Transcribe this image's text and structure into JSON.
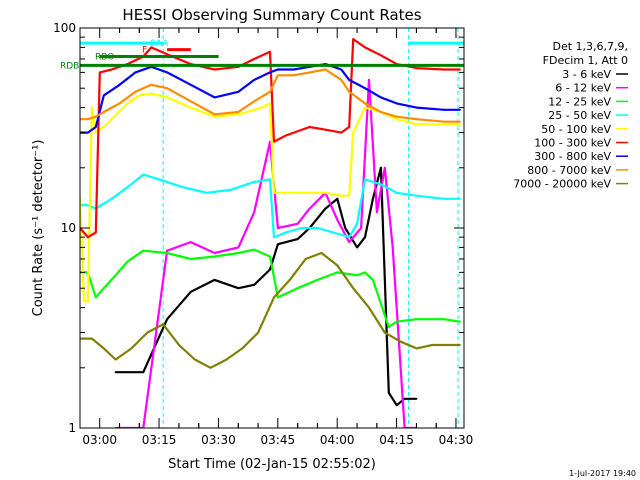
{
  "chart_data": {
    "type": "line",
    "title": "HESSI Observing Summary Count Rates",
    "xlabel": "Start Time (02-Jan-15 02:55:02)",
    "ylabel": "Count Rate (s⁻¹ detector⁻¹)",
    "yscale": "log",
    "ylim": [
      1,
      100
    ],
    "xlim_minutes": [
      0,
      97
    ],
    "yticks": [
      {
        "value": 1,
        "label": "1"
      },
      {
        "value": 10,
        "label": "10"
      },
      {
        "value": 100,
        "label": "100"
      }
    ],
    "xticks": [
      {
        "value": 4.97,
        "label": "03:00"
      },
      {
        "value": 19.97,
        "label": "03:15"
      },
      {
        "value": 34.97,
        "label": "03:30"
      },
      {
        "value": 49.97,
        "label": "03:45"
      },
      {
        "value": 64.97,
        "label": "04:00"
      },
      {
        "value": 79.97,
        "label": "04:15"
      },
      {
        "value": 94.97,
        "label": "04:30"
      }
    ],
    "legend_header": [
      "Det 1,3,6,7,9,",
      "FDecim 1, Att 0"
    ],
    "legend_placement": "right",
    "series": [
      {
        "name": "3 - 6 keV",
        "color": "#000000",
        "x": [
          9,
          16,
          22,
          28,
          34,
          40,
          44,
          48,
          50,
          55,
          58,
          62,
          65,
          67,
          70,
          72,
          74,
          76,
          78,
          80,
          82,
          85
        ],
        "y": [
          1.9,
          1.9,
          3.5,
          4.8,
          5.5,
          5.0,
          5.2,
          6.2,
          8.3,
          8.8,
          10.0,
          12.5,
          14.0,
          10.0,
          8.0,
          9.0,
          14.0,
          20.0,
          1.5,
          1.3,
          1.4,
          1.4
        ]
      },
      {
        "name": "6 - 12 keV",
        "color": "#ff00ff",
        "x": [
          9,
          16,
          22,
          28,
          34,
          40,
          44,
          48,
          50,
          55,
          58,
          62,
          65,
          68,
          71,
          73,
          75,
          77,
          79,
          82,
          85
        ],
        "y": [
          1.0,
          1.0,
          7.7,
          8.5,
          7.5,
          8.0,
          12.0,
          27.0,
          10.0,
          10.5,
          12.5,
          15.0,
          11.0,
          8.5,
          10.0,
          55.0,
          12.0,
          20.0,
          8.0,
          1.0,
          1.0
        ]
      },
      {
        "name": "12 - 25 keV",
        "color": "#00ff00",
        "x": [
          0,
          2,
          4,
          6,
          9,
          12,
          16,
          22,
          28,
          34,
          40,
          44,
          48,
          50,
          55,
          60,
          65,
          70,
          72,
          74,
          78,
          80,
          85,
          92,
          96
        ],
        "y": [
          6.0,
          6.0,
          4.5,
          5.0,
          5.8,
          6.8,
          7.7,
          7.5,
          7.0,
          7.2,
          7.5,
          7.8,
          7.2,
          4.5,
          5.0,
          5.5,
          6.0,
          5.8,
          6.0,
          5.5,
          3.2,
          3.4,
          3.5,
          3.5,
          3.4
        ]
      },
      {
        "name": "25 - 50 keV",
        "color": "#00ffff",
        "x": [
          0,
          2,
          4,
          8,
          12,
          16,
          20,
          26,
          32,
          38,
          44,
          48,
          49,
          52,
          56,
          60,
          64,
          68,
          70,
          72,
          76,
          80,
          85,
          92,
          96
        ],
        "y": [
          13.0,
          13.0,
          12.5,
          14.0,
          16.0,
          18.5,
          17.5,
          16.0,
          15.0,
          15.5,
          17.0,
          17.5,
          9.0,
          9.5,
          10.0,
          10.0,
          9.5,
          9.0,
          10.5,
          17.5,
          16.5,
          15.0,
          14.5,
          14.0,
          14.0
        ]
      },
      {
        "name": "50 - 100 keV",
        "color": "#ffff00",
        "x": [
          0,
          1,
          2,
          3,
          4,
          6,
          8,
          12,
          15,
          18,
          22,
          28,
          34,
          40,
          46,
          48,
          49,
          52,
          58,
          62,
          66,
          68,
          69,
          72,
          76,
          80,
          85,
          96
        ],
        "y": [
          14.0,
          4.3,
          4.3,
          40.0,
          30.0,
          32.0,
          35.0,
          42.0,
          46.0,
          47.0,
          45.0,
          40.0,
          36.0,
          37.0,
          40.0,
          42.0,
          15.0,
          15.0,
          15.0,
          15.0,
          14.5,
          14.5,
          30.0,
          40.0,
          38.0,
          35.0,
          33.0,
          33.0
        ]
      },
      {
        "name": "100 - 300 keV",
        "color": "#ff0000",
        "x": [
          0,
          2,
          4,
          5,
          8,
          12,
          16,
          18,
          22,
          28,
          34,
          40,
          44,
          48,
          49,
          52,
          58,
          62,
          66,
          68,
          69,
          72,
          76,
          80,
          85,
          92,
          96
        ],
        "y": [
          10.0,
          9.0,
          9.5,
          60.0,
          62.0,
          66.0,
          72.0,
          80.0,
          74.0,
          66.0,
          62.0,
          64.0,
          70.0,
          76.0,
          27.0,
          29.0,
          32.0,
          31.0,
          30.0,
          32.0,
          88.0,
          80.0,
          73.0,
          66.0,
          63.0,
          62.0,
          62.0
        ]
      },
      {
        "name": "300 - 800 keV",
        "color": "#0000ff",
        "x": [
          0,
          2,
          4,
          6,
          10,
          14,
          18,
          22,
          28,
          34,
          40,
          44,
          48,
          50,
          54,
          58,
          62,
          66,
          68,
          72,
          76,
          80,
          85,
          92,
          96
        ],
        "y": [
          30.0,
          30.0,
          32.0,
          46.0,
          52.0,
          60.0,
          64.0,
          60.0,
          52.0,
          45.0,
          48.0,
          55.0,
          60.0,
          62.0,
          62.0,
          64.0,
          66.0,
          62.0,
          55.0,
          50.0,
          45.0,
          42.0,
          40.0,
          39.0,
          39.0
        ]
      },
      {
        "name": "800 - 7000 keV",
        "color": "#ff8c00",
        "x": [
          0,
          2,
          4,
          6,
          10,
          14,
          18,
          22,
          28,
          34,
          40,
          44,
          48,
          50,
          54,
          58,
          62,
          66,
          68,
          72,
          76,
          80,
          85,
          92,
          96
        ],
        "y": [
          35.0,
          35.0,
          36.0,
          38.0,
          42.0,
          48.0,
          52.0,
          50.0,
          43.0,
          37.0,
          38.0,
          43.0,
          48.0,
          58.0,
          58.0,
          60.0,
          62.0,
          55.0,
          48.0,
          42.0,
          38.0,
          36.0,
          35.0,
          34.0,
          34.0
        ]
      },
      {
        "name": "7000 - 20000 keV",
        "color": "#808000",
        "x": [
          0,
          3,
          6,
          9,
          13,
          17,
          21,
          25,
          29,
          33,
          37,
          41,
          45,
          49,
          53,
          57,
          61,
          65,
          69,
          73,
          77,
          81,
          85,
          89,
          93,
          96
        ],
        "y": [
          2.8,
          2.8,
          2.5,
          2.2,
          2.5,
          3.0,
          3.3,
          2.6,
          2.2,
          2.0,
          2.2,
          2.5,
          3.0,
          4.5,
          5.5,
          7.0,
          7.5,
          6.5,
          5.0,
          4.0,
          3.0,
          2.7,
          2.5,
          2.6,
          2.6,
          2.6
        ]
      }
    ],
    "status_bars": [
      {
        "label": "RDB",
        "color": "#008000",
        "value": 65,
        "x": [
          0,
          97
        ]
      },
      {
        "label": "RBO",
        "color": "#008000",
        "value": 72,
        "x": [
          5,
          35
        ]
      },
      {
        "label": "F",
        "color": "#ff0000",
        "value": 78,
        "x": [
          22,
          28
        ]
      },
      {
        "label": "SAA",
        "color": "#00ffff",
        "value": 84,
        "x": [
          0,
          21
        ]
      },
      {
        "label": "SAA",
        "color": "#00ffff",
        "value": 84,
        "x": [
          83,
          97
        ]
      }
    ],
    "status_bar_labels": [
      "RDB",
      "RBO",
      "F",
      "SAA"
    ],
    "vertical_markers_minutes": [
      21,
      83,
      95.5
    ],
    "grid": false
  },
  "footer": {
    "timestamp": "1-Jul-2017 19:40"
  }
}
